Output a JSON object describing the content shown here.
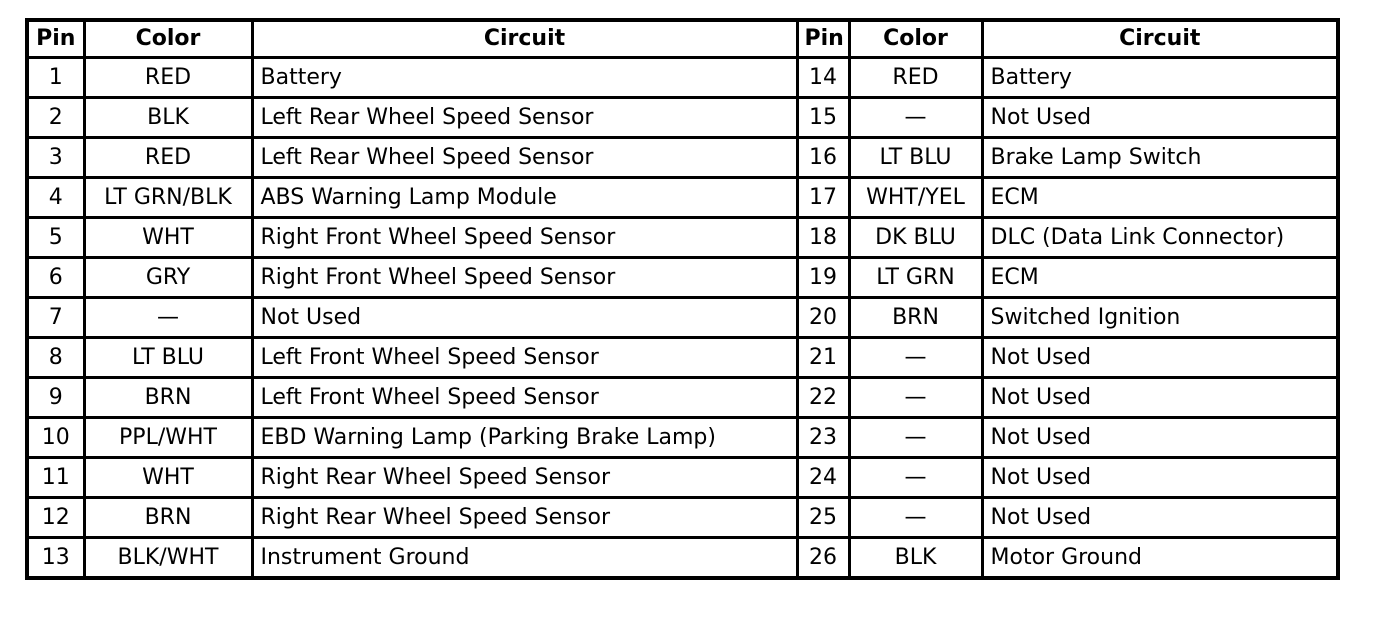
{
  "headers": [
    "Pin",
    "Color",
    "Circuit",
    "Pin",
    "Color",
    "Circuit"
  ],
  "left_rows": [
    {
      "pin": "1",
      "color": "RED",
      "circuit": "Battery"
    },
    {
      "pin": "2",
      "color": "BLK",
      "circuit": "Left Rear Wheel Speed Sensor"
    },
    {
      "pin": "3",
      "color": "RED",
      "circuit": "Left Rear Wheel Speed Sensor"
    },
    {
      "pin": "4",
      "color": "LT GRN/BLK",
      "circuit": "ABS Warning Lamp Module"
    },
    {
      "pin": "5",
      "color": "WHT",
      "circuit": "Right Front Wheel Speed Sensor"
    },
    {
      "pin": "6",
      "color": "GRY",
      "circuit": "Right Front Wheel Speed Sensor"
    },
    {
      "pin": "7",
      "color": "—",
      "circuit": "Not Used"
    },
    {
      "pin": "8",
      "color": "LT BLU",
      "circuit": "Left Front Wheel Speed Sensor"
    },
    {
      "pin": "9",
      "color": "BRN",
      "circuit": "Left Front Wheel Speed Sensor"
    },
    {
      "pin": "10",
      "color": "PPL/WHT",
      "circuit": "EBD Warning Lamp (Parking Brake Lamp)"
    },
    {
      "pin": "11",
      "color": "WHT",
      "circuit": "Right Rear Wheel Speed Sensor"
    },
    {
      "pin": "12",
      "color": "BRN",
      "circuit": "Right Rear Wheel Speed Sensor"
    },
    {
      "pin": "13",
      "color": "BLK/WHT",
      "circuit": "Instrument Ground"
    }
  ],
  "right_rows": [
    {
      "pin": "14",
      "color": "RED",
      "circuit": "Battery"
    },
    {
      "pin": "15",
      "color": "—",
      "circuit": "Not Used"
    },
    {
      "pin": "16",
      "color": "LT BLU",
      "circuit": "Brake Lamp Switch"
    },
    {
      "pin": "17",
      "color": "WHT/YEL",
      "circuit": "ECM"
    },
    {
      "pin": "18",
      "color": "DK BLU",
      "circuit": "DLC (Data Link Connector)"
    },
    {
      "pin": "19",
      "color": "LT GRN",
      "circuit": "ECM"
    },
    {
      "pin": "20",
      "color": "BRN",
      "circuit": "Switched Ignition"
    },
    {
      "pin": "21",
      "color": "—",
      "circuit": "Not Used"
    },
    {
      "pin": "22",
      "color": "—",
      "circuit": "Not Used"
    },
    {
      "pin": "23",
      "color": "—",
      "circuit": "Not Used"
    },
    {
      "pin": "24",
      "color": "—",
      "circuit": "Not Used"
    },
    {
      "pin": "25",
      "color": "—",
      "circuit": "Not Used"
    },
    {
      "pin": "26",
      "color": "BLK",
      "circuit": "Motor Ground"
    }
  ]
}
